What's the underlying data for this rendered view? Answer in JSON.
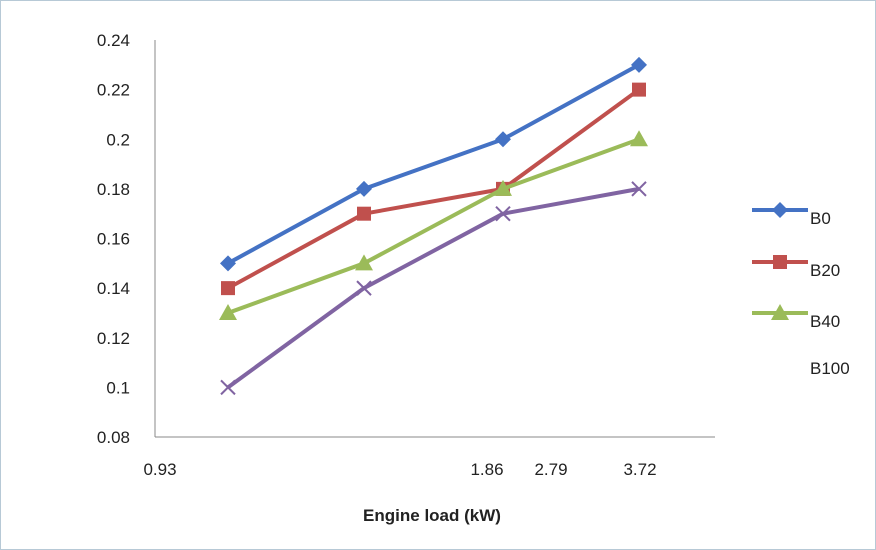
{
  "chart_data": {
    "type": "line",
    "title": "",
    "xlabel": "Engine load (kW)",
    "ylabel": "",
    "ylim": [
      0.08,
      0.24
    ],
    "yticks": [
      "0.08",
      "0.1",
      "0.12",
      "0.14",
      "0.16",
      "0.18",
      "0.2",
      "0.22",
      "0.24"
    ],
    "xtick_labels": [
      "0.93",
      "1.86",
      "2.79",
      "3.72"
    ],
    "grid": false,
    "legend_position": "right",
    "series": [
      {
        "name": "B0",
        "color": "#4472C4",
        "marker": "diamond",
        "values": [
          0.15,
          0.18,
          0.2,
          0.23
        ]
      },
      {
        "name": "B20",
        "color": "#C0504D",
        "marker": "square",
        "values": [
          0.14,
          0.17,
          0.18,
          0.22
        ]
      },
      {
        "name": "B40",
        "color": "#9BBB59",
        "marker": "triangle",
        "values": [
          0.13,
          0.15,
          0.18,
          0.2
        ]
      },
      {
        "name": "B100",
        "color": "#8064A2",
        "marker": "x",
        "values": [
          0.1,
          0.14,
          0.17,
          0.18
        ]
      }
    ]
  }
}
